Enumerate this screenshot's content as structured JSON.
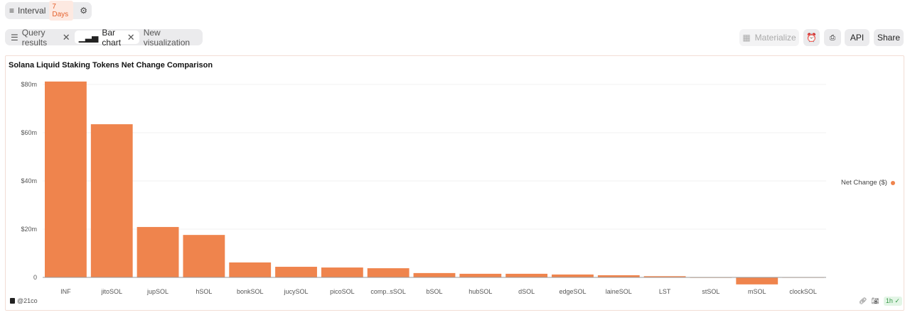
{
  "header": {
    "interval_label": "Interval",
    "interval_value": "7 Days"
  },
  "tabs": [
    {
      "label": "Query results"
    },
    {
      "label": "Bar chart"
    },
    {
      "label": "New visualization"
    }
  ],
  "toolbar": {
    "materialize": "Materialize",
    "api": "API",
    "share": "Share"
  },
  "footer": {
    "credit": "@21co",
    "freshness": "1h"
  },
  "colors": {
    "bar": "#ef844d",
    "accent": "#e5612d"
  },
  "chart_data": {
    "type": "bar",
    "title": "Solana Liquid Staking Tokens Net Change Comparison",
    "categories": [
      "INF",
      "jitoSOL",
      "jupSOL",
      "hSOL",
      "bonkSOL",
      "jucySOL",
      "picoSOL",
      "comp..sSOL",
      "bSOL",
      "hubSOL",
      "dSOL",
      "edgeSOL",
      "laineSOL",
      "LST",
      "stSOL",
      "mSOL",
      "clockSOL"
    ],
    "series": [
      {
        "name": "Net Change ($)",
        "values": [
          81.2,
          63.5,
          20.9,
          17.6,
          6.2,
          4.4,
          4.1,
          3.8,
          1.8,
          1.5,
          1.5,
          1.2,
          0.9,
          0.5,
          -0.2,
          -2.9,
          -0.05
        ]
      }
    ],
    "y_ticks": [
      "0",
      "$20m",
      "$40m",
      "$60m",
      "$80m"
    ],
    "ylim": [
      -3,
      82
    ],
    "grid": true,
    "legend": "right",
    "unit": "$m"
  }
}
